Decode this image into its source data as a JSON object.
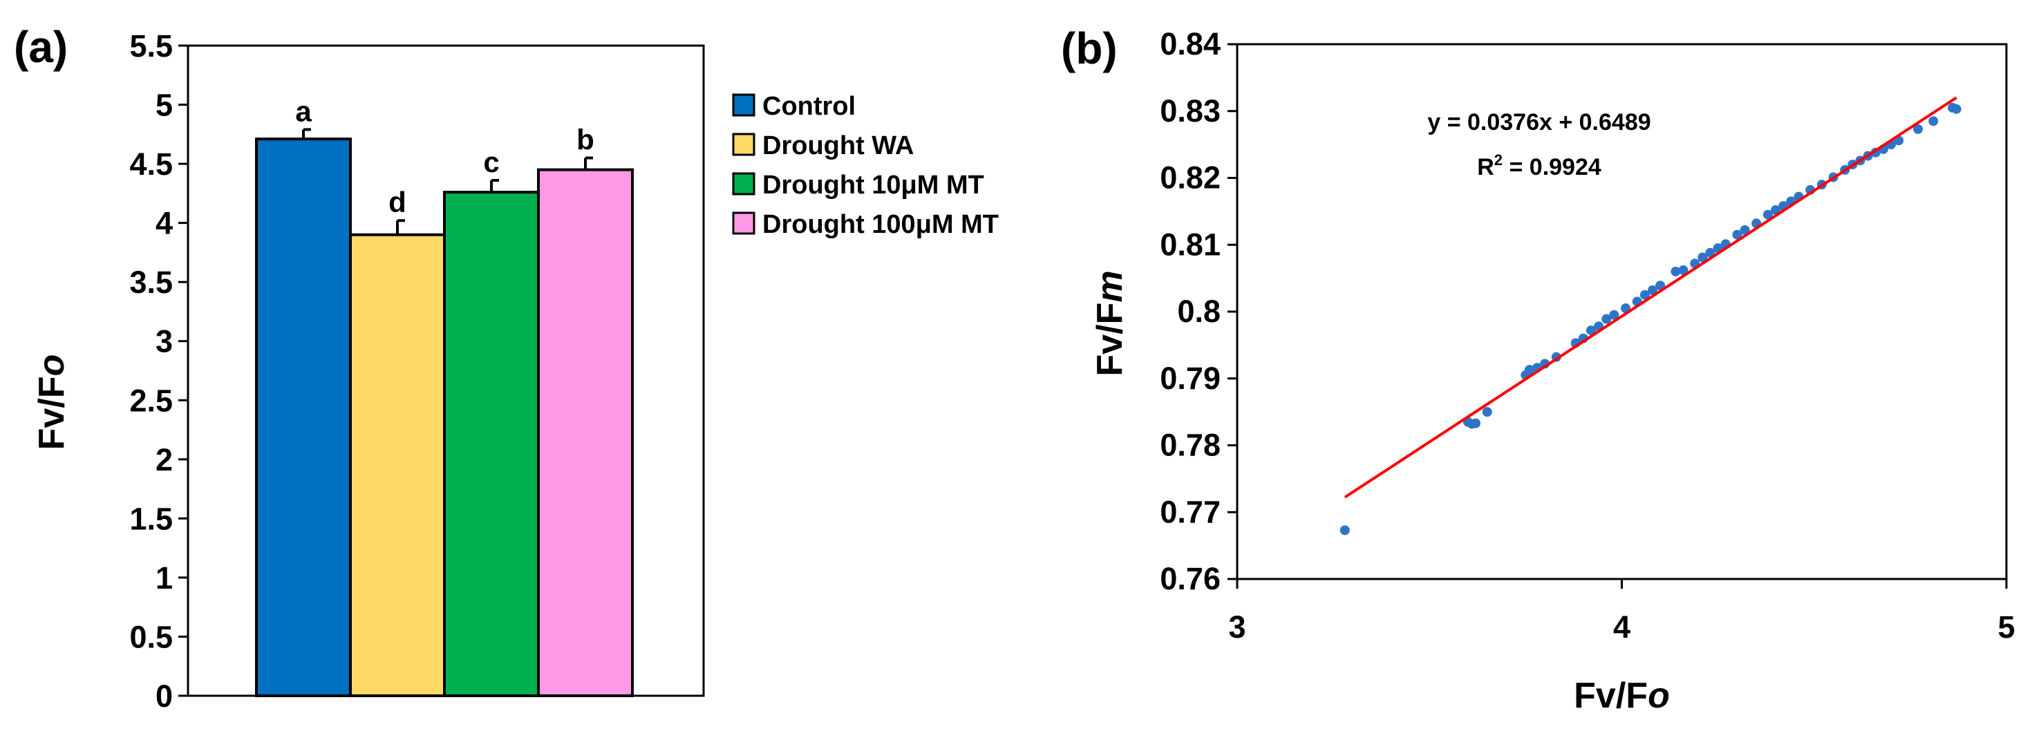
{
  "chart_data": [
    {
      "type": "bar",
      "panel_label": "(a)",
      "categories": [
        "Control",
        "Drought WA",
        "Drought 10μM MT",
        "Drought 100μM MT"
      ],
      "values": [
        4.71,
        3.9,
        4.26,
        4.45
      ],
      "errors": [
        0.08,
        0.12,
        0.1,
        0.1
      ],
      "significance": [
        "a",
        "d",
        "c",
        "b"
      ],
      "colors": [
        "#0070C0",
        "#FFD966",
        "#00B050",
        "#FF99E6"
      ],
      "ylabel_parts": [
        "Fv",
        "/F",
        "o"
      ],
      "ylim": [
        0,
        5.5
      ],
      "yticks": [
        "0",
        "0.5",
        "1",
        "1.5",
        "2",
        "2.5",
        "3",
        "3.5",
        "4",
        "4.5",
        "5",
        "5.5"
      ],
      "legend": [
        "Control",
        "Drought WA",
        "Drought 10μM MT",
        "Drought 100μM MT"
      ],
      "legend_placement": "right",
      "grid": false
    },
    {
      "type": "scatter",
      "panel_label": "(b)",
      "xlabel_parts": [
        "Fv",
        "/F",
        "o"
      ],
      "ylabel_parts": [
        "Fv",
        "/F",
        "m"
      ],
      "xlim": [
        3,
        5
      ],
      "ylim": [
        0.76,
        0.84
      ],
      "xticks": [
        "3",
        "4",
        "5"
      ],
      "yticks": [
        "0.76",
        "0.77",
        "0.78",
        "0.79",
        "0.8",
        "0.81",
        "0.82",
        "0.83",
        "0.84"
      ],
      "points": [
        [
          3.28,
          0.7673
        ],
        [
          3.6,
          0.7835
        ],
        [
          3.61,
          0.7832
        ],
        [
          3.62,
          0.7833
        ],
        [
          3.65,
          0.785
        ],
        [
          3.75,
          0.7905
        ],
        [
          3.76,
          0.7913
        ],
        [
          3.78,
          0.7916
        ],
        [
          3.8,
          0.7922
        ],
        [
          3.83,
          0.7932
        ],
        [
          3.88,
          0.7953
        ],
        [
          3.9,
          0.796
        ],
        [
          3.92,
          0.7972
        ],
        [
          3.94,
          0.7978
        ],
        [
          3.96,
          0.7989
        ],
        [
          3.98,
          0.7995
        ],
        [
          4.01,
          0.8005
        ],
        [
          4.04,
          0.8015
        ],
        [
          4.06,
          0.8025
        ],
        [
          4.08,
          0.8032
        ],
        [
          4.1,
          0.8039
        ],
        [
          4.14,
          0.806
        ],
        [
          4.16,
          0.8062
        ],
        [
          4.19,
          0.8072
        ],
        [
          4.21,
          0.8081
        ],
        [
          4.23,
          0.8088
        ],
        [
          4.25,
          0.8095
        ],
        [
          4.27,
          0.8101
        ],
        [
          4.3,
          0.8115
        ],
        [
          4.32,
          0.8122
        ],
        [
          4.35,
          0.8132
        ],
        [
          4.38,
          0.8145
        ],
        [
          4.4,
          0.8152
        ],
        [
          4.42,
          0.8158
        ],
        [
          4.44,
          0.8165
        ],
        [
          4.46,
          0.8172
        ],
        [
          4.49,
          0.8182
        ],
        [
          4.52,
          0.819
        ],
        [
          4.55,
          0.8201
        ],
        [
          4.58,
          0.8212
        ],
        [
          4.6,
          0.822
        ],
        [
          4.62,
          0.8226
        ],
        [
          4.64,
          0.8233
        ],
        [
          4.66,
          0.8238
        ],
        [
          4.68,
          0.8243
        ],
        [
          4.7,
          0.825
        ],
        [
          4.72,
          0.8256
        ],
        [
          4.77,
          0.8273
        ],
        [
          4.81,
          0.8285
        ],
        [
          4.86,
          0.8305
        ],
        [
          4.87,
          0.8303
        ]
      ],
      "trendline": {
        "slope": 0.0376,
        "intercept": 0.6489,
        "x_range": [
          3.28,
          4.87
        ],
        "color": "#FF0000"
      },
      "equation": "y = 0.0376x + 0.6489",
      "r2_label": "R",
      "r2_sup": "2",
      "r2_value": " = 0.9924",
      "point_color": "#2E75C9",
      "grid": false
    }
  ]
}
